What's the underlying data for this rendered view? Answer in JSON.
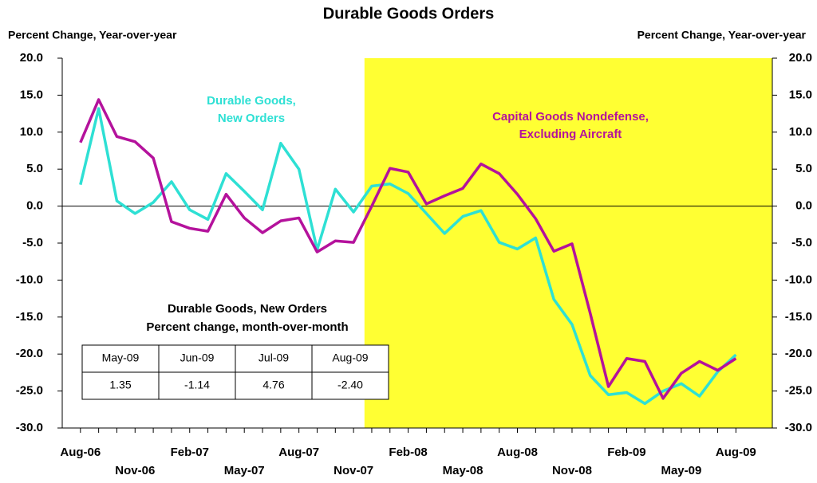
{
  "chart_data": {
    "type": "line",
    "title": "Durable Goods Orders",
    "y_axis_label": "Percent Change, Year-over-year",
    "y2_axis_label": "Percent Change, Year-over-year",
    "categories": [
      "Aug-06",
      null,
      null,
      "Nov-06",
      null,
      null,
      "Feb-07",
      null,
      null,
      "May-07",
      null,
      null,
      "Aug-07",
      null,
      null,
      "Nov-07",
      null,
      null,
      "Feb-08",
      null,
      null,
      "May-08",
      null,
      null,
      "Aug-08",
      null,
      null,
      "Nov-08",
      null,
      null,
      "Feb-09",
      null,
      null,
      "May-09",
      null,
      null,
      "Aug-09"
    ],
    "series": [
      {
        "name": "Durable Goods, New Orders",
        "color": "#2ee0d4",
        "values": [
          2.9,
          13.2,
          0.7,
          -1.0,
          0.5,
          3.3,
          -0.5,
          -1.8,
          4.4,
          2.0,
          -0.5,
          8.5,
          5.0,
          -5.9,
          2.3,
          -0.8,
          2.7,
          3.0,
          1.7,
          -1.0,
          -3.7,
          -1.4,
          -0.6,
          -4.9,
          -5.8,
          -4.3,
          -12.6,
          -16.0,
          -22.9,
          -25.5,
          -25.2,
          -26.7,
          -25.0,
          -24.0,
          -25.7,
          -22.4,
          -20.1
        ]
      },
      {
        "name": "Capital Goods Nondefense, Excluding  Aircraft",
        "color": "#b4129c",
        "values": [
          8.6,
          14.4,
          9.4,
          8.7,
          6.5,
          -2.1,
          -3.0,
          -3.4,
          1.6,
          -1.6,
          -3.6,
          -2.0,
          -1.6,
          -6.2,
          -4.7,
          -4.9,
          0.0,
          5.1,
          4.6,
          0.3,
          1.4,
          2.4,
          5.7,
          4.4,
          1.6,
          -1.7,
          -6.1,
          -5.1,
          -14.5,
          -24.4,
          -20.6,
          -21.0,
          -26.0,
          -22.6,
          -21.0,
          -22.2,
          -20.6
        ]
      }
    ],
    "annotations": [
      {
        "lines": [
          "Durable Goods,",
          "New Orders"
        ],
        "color": "#2ee0d4"
      },
      {
        "lines": [
          "Capital Goods Nondefense,",
          "Excluding  Aircraft"
        ],
        "color": "#b4129c"
      }
    ],
    "shade": {
      "start": 15.6,
      "end": 38,
      "color": "#ffff33"
    },
    "xlim": [
      -1,
      38
    ],
    "ylim": [
      -30,
      20
    ],
    "yticks": [
      {
        "value": -30,
        "label": "-30.0"
      },
      {
        "value": -25,
        "label": "-25.0"
      },
      {
        "value": -20,
        "label": "-20.0"
      },
      {
        "value": -15,
        "label": "-15.0"
      },
      {
        "value": -10,
        "label": "-10.0"
      },
      {
        "value": -5,
        "label": "-5.0"
      },
      {
        "value": 0,
        "label": "0.0"
      },
      {
        "value": 5,
        "label": "5.0"
      },
      {
        "value": 10,
        "label": "10.0"
      },
      {
        "value": 15,
        "label": "15.0"
      },
      {
        "value": 20,
        "label": "20.0"
      }
    ],
    "y2lim": [
      -30,
      20
    ],
    "y2ticks": [
      {
        "value": -30,
        "label": "-30.0"
      },
      {
        "value": -25,
        "label": "-25.0"
      },
      {
        "value": -20,
        "label": "-20.0"
      },
      {
        "value": -15,
        "label": "-15.0"
      },
      {
        "value": -10,
        "label": "-10.0"
      },
      {
        "value": -5,
        "label": "-5.0"
      },
      {
        "value": 0,
        "label": "0.0"
      },
      {
        "value": 5,
        "label": "5.0"
      },
      {
        "value": 10,
        "label": "10.0"
      },
      {
        "value": 15,
        "label": "15.0"
      },
      {
        "value": 20,
        "label": "20.0"
      }
    ],
    "inset": {
      "title": [
        "Durable Goods, New Orders",
        "Percent change, month-over-month"
      ],
      "table": {
        "header": [
          "May-09",
          "Jun-09",
          "Jul-09",
          "Aug-09"
        ],
        "rows": [
          [
            "1.35",
            "-1.14",
            "4.76",
            "-2.40"
          ]
        ]
      }
    }
  }
}
